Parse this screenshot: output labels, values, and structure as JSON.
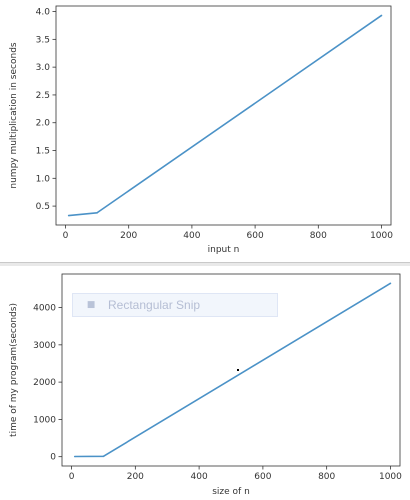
{
  "theme": {
    "line_color": "#4b92c7",
    "axis_color": "#333333"
  },
  "overlay": {
    "label": "Rectangular Snip",
    "icon": "snip-icon"
  },
  "chart_data": [
    {
      "type": "line",
      "title": "",
      "xlabel": "input n",
      "ylabel": "numpy multiplication in seconds",
      "xlim": [
        -30,
        1030
      ],
      "ylim": [
        0.16,
        4.1
      ],
      "xticks": [
        0,
        200,
        400,
        600,
        800,
        1000
      ],
      "yticks": [
        0.5,
        1.0,
        1.5,
        2.0,
        2.5,
        3.0,
        3.5,
        4.0
      ],
      "ytick_labels": [
        "0.5",
        "1.0",
        "1.5",
        "2.0",
        "2.5",
        "3.0",
        "3.5",
        "4.0"
      ],
      "grid": false,
      "series": [
        {
          "x": [
            10,
            100,
            1000
          ],
          "y": [
            0.33,
            0.38,
            3.93
          ]
        }
      ]
    },
    {
      "type": "line",
      "title": "",
      "xlabel": "size of n",
      "ylabel": "time of my program(seconds)",
      "xlim": [
        -30,
        1030
      ],
      "ylim": [
        -250,
        4900
      ],
      "xticks": [
        0,
        200,
        400,
        600,
        800,
        1000
      ],
      "yticks": [
        0,
        1000,
        2000,
        3000,
        4000
      ],
      "ytick_labels": [
        "0",
        "1000",
        "2000",
        "3000",
        "4000"
      ],
      "grid": false,
      "series": [
        {
          "x": [
            10,
            100,
            1000
          ],
          "y": [
            5,
            10,
            4650
          ]
        }
      ]
    }
  ]
}
